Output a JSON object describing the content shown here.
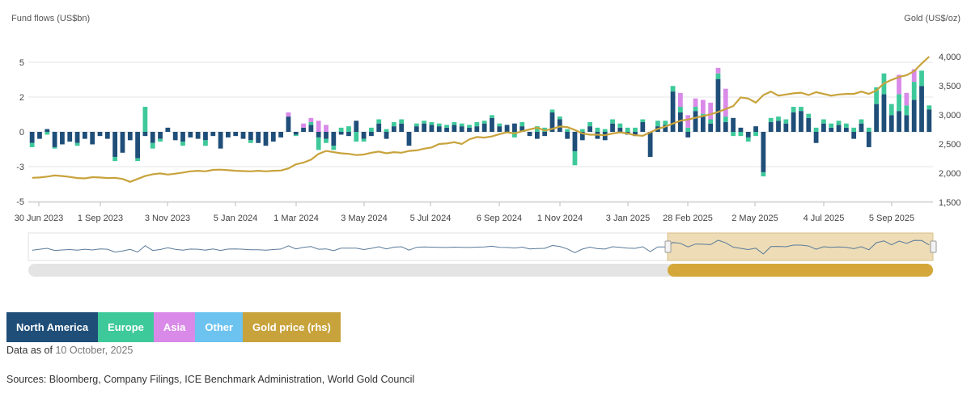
{
  "chart_data": {
    "type": "bar",
    "stacked": true,
    "ylabel_left": "Fund flows (US$bn)",
    "ylabel_right": "Gold (US$/oz)",
    "yticks_left": [
      "5",
      "2",
      "0",
      "-3",
      "-5"
    ],
    "yticks_left_values": [
      5,
      2.5,
      0,
      -2.5,
      -5
    ],
    "ylim_left": [
      -5,
      6.5
    ],
    "yticks_right": [
      "4,000",
      "3,500",
      "3,000",
      "2,500",
      "2,000",
      "1,500"
    ],
    "yticks_right_values": [
      4000,
      3500,
      3000,
      2500,
      2000,
      1500
    ],
    "ylim_right": [
      1500,
      4250
    ],
    "xticks": [
      "30 Jun 2023",
      "1 Sep 2023",
      "3 Nov 2023",
      "5 Jan 2024",
      "1 Mar 2024",
      "3 May 2024",
      "5 Jul 2024",
      "6 Sep 2024",
      "1 Nov 2024",
      "3 Jan 2025",
      "28 Feb 2025",
      "2 May 2025",
      "4 Jul 2025",
      "5 Sep 2025"
    ],
    "week_count": 120,
    "series": [
      {
        "name": "North America",
        "color": "#1f4e79",
        "values": [
          -0.8,
          -0.5,
          0.2,
          -1.1,
          -0.9,
          -0.7,
          -0.8,
          -0.5,
          -0.9,
          -0.3,
          -0.5,
          -1.8,
          -1.5,
          -0.6,
          -1.9,
          -0.3,
          -0.8,
          -0.5,
          0.3,
          -0.6,
          -0.7,
          -0.4,
          -0.5,
          -0.6,
          -0.3,
          -1.2,
          -0.4,
          -0.3,
          -0.5,
          -0.6,
          -0.8,
          -1.0,
          -0.7,
          -0.4,
          1.1,
          -0.2,
          0.3,
          0.5,
          -0.4,
          -0.5,
          -1.0,
          -0.2,
          -0.3,
          0.8,
          -0.5,
          -0.3,
          0.6,
          -0.5,
          0.4,
          0.6,
          -1.0,
          0.4,
          0.6,
          0.5,
          0.4,
          0.3,
          0.5,
          0.4,
          0.3,
          0.4,
          0.6,
          1.0,
          0.4,
          0.5,
          0.6,
          0.4,
          -0.3,
          -0.5,
          -0.3,
          1.4,
          0.9,
          -0.5,
          -1.4,
          -0.6,
          0.4,
          -0.5,
          -0.6,
          0.6,
          0.3,
          -0.2,
          -0.3,
          0.7,
          -1.8,
          0.4,
          0.5,
          2.9,
          1.4,
          -0.4,
          1.5,
          1.1,
          0.6,
          3.8,
          0.7,
          1.0,
          0.3,
          -0.4,
          0.4,
          -2.9,
          0.7,
          0.8,
          0.6,
          1.4,
          1.5,
          1.0,
          -0.8,
          0.6,
          0.3,
          0.5,
          0.3,
          -0.5,
          0.6,
          -1.1,
          2.0,
          2.7,
          1.2,
          1.5,
          1.2,
          2.3,
          3.3,
          1.6
        ],
        "negatives": [
          -0.8,
          -0.5,
          0,
          -1.1,
          -0.9,
          -0.7,
          -0.8,
          -0.5,
          -0.9,
          -0.3,
          -0.5,
          -1.8,
          -1.5,
          -0.6,
          -1.9,
          -0.3,
          -0.8,
          -0.5,
          0,
          -0.6,
          -0.7,
          -0.4,
          -0.5,
          -0.6,
          -0.3,
          -1.2,
          -0.4,
          -0.3,
          -0.5,
          -0.6,
          -0.8,
          -1.0,
          -0.7,
          -0.4,
          0,
          -0.2,
          0,
          0,
          -0.4,
          -0.5,
          -1.0,
          -0.2,
          -0.3,
          0,
          -0.5,
          -0.3,
          0,
          -0.5,
          0,
          0,
          -1.0,
          0,
          0,
          0,
          0,
          0,
          0,
          0,
          0,
          0,
          0,
          0,
          0,
          0,
          0,
          0,
          -0.3,
          -0.5,
          -0.3,
          0,
          0,
          -0.5,
          -1.4,
          -0.6,
          0,
          -0.5,
          -0.6,
          0,
          0,
          -0.2,
          -0.3,
          0,
          -1.8,
          0,
          0,
          0,
          0,
          -0.4,
          0,
          0,
          0,
          0,
          0,
          0,
          0,
          -0.4,
          0,
          -2.9,
          0,
          0,
          0,
          0,
          0,
          0,
          -0.8,
          0,
          0,
          0,
          0,
          -0.5,
          0,
          -1.1,
          0,
          0,
          0,
          0,
          0,
          0,
          0,
          0
        ]
      },
      {
        "name": "Europe",
        "color": "#3ec99a",
        "values": [
          -0.3,
          0,
          -0.2,
          -0.1,
          0,
          0,
          -0.2,
          0,
          0,
          0,
          0,
          -0.3,
          0,
          0,
          -0.2,
          1.8,
          -0.4,
          -0.2,
          0,
          0,
          -0.3,
          0,
          0,
          -0.4,
          0,
          0,
          0,
          0,
          0,
          -0.2,
          0,
          0,
          0,
          0,
          0,
          -0.1,
          0,
          0.2,
          -0.9,
          -0.3,
          -0.3,
          0.3,
          0.4,
          -0.7,
          -0.2,
          0.3,
          0.3,
          0.2,
          0.3,
          0.3,
          0,
          0.2,
          0.2,
          0.2,
          0.2,
          0.2,
          0.2,
          0.2,
          0.2,
          0.3,
          0.2,
          0.2,
          0.2,
          0,
          -0.4,
          0.3,
          0,
          0.4,
          0.3,
          0.2,
          0.2,
          0.2,
          -1.0,
          0.2,
          0.3,
          0.3,
          0.2,
          0.3,
          0.3,
          0.3,
          0.3,
          0.2,
          0,
          0.4,
          0.3,
          0.4,
          0.4,
          0.3,
          0.3,
          0.2,
          0.3,
          0.4,
          0.4,
          -0.3,
          -0.3,
          -0.3,
          -0.3,
          -0.3,
          0.3,
          0.3,
          0.3,
          0.4,
          0.3,
          0.3,
          0.3,
          0.3,
          0.3,
          0.3,
          0.3,
          0.3,
          0.3,
          0.3,
          1.2,
          1.5,
          0.8,
          1.2,
          0.7,
          1.3,
          1.1,
          0.3
        ],
        "negatives": []
      },
      {
        "name": "Asia",
        "color": "#d98ae8",
        "values": [
          0,
          0,
          0,
          0,
          0,
          0,
          0,
          0,
          0,
          0,
          0,
          0,
          0,
          0,
          0,
          0,
          0,
          0,
          0,
          0,
          0,
          0,
          0,
          0,
          0,
          0,
          0,
          0,
          0,
          0,
          0,
          0,
          0,
          0,
          0.3,
          0,
          0.3,
          0.3,
          0.8,
          0.5,
          0,
          0,
          0,
          0,
          0,
          0,
          0,
          0,
          0,
          0,
          0,
          0,
          0,
          0,
          0,
          0,
          0,
          0,
          0,
          0,
          0,
          0,
          0,
          0,
          0,
          0,
          0,
          0,
          0,
          0,
          0,
          0,
          0,
          0,
          0,
          0,
          0,
          0,
          0,
          0,
          0,
          0,
          0,
          0,
          0,
          0,
          1.0,
          0.9,
          0.6,
          1.0,
          1.2,
          0.4,
          2.0,
          0,
          0,
          0,
          0,
          0,
          0,
          0,
          0,
          0,
          0,
          0,
          0,
          0,
          0,
          0,
          0,
          0,
          0,
          0,
          0,
          0,
          0,
          1.4,
          0.9,
          0.9
        ],
        "negatives": []
      }
    ],
    "gold_price": {
      "name": "Gold price (rhs)",
      "color": "#c8a33c",
      "values": [
        1920,
        1925,
        1940,
        1960,
        1950,
        1935,
        1915,
        1910,
        1930,
        1925,
        1915,
        1920,
        1900,
        1850,
        1900,
        1950,
        1980,
        1995,
        1975,
        1990,
        2010,
        2030,
        2040,
        2030,
        2055,
        2060,
        2050,
        2040,
        2035,
        2030,
        2040,
        2030,
        2040,
        2045,
        2080,
        2150,
        2180,
        2230,
        2330,
        2380,
        2360,
        2340,
        2330,
        2310,
        2320,
        2350,
        2370,
        2340,
        2360,
        2350,
        2380,
        2390,
        2420,
        2440,
        2500,
        2510,
        2530,
        2500,
        2580,
        2620,
        2610,
        2630,
        2670,
        2700,
        2680,
        2720,
        2750,
        2780,
        2730,
        2760,
        2800,
        2790,
        2740,
        2680,
        2660,
        2660,
        2650,
        2680,
        2700,
        2680,
        2650,
        2640,
        2700,
        2760,
        2800,
        2850,
        2900,
        2920,
        2950,
        2980,
        3010,
        3050,
        3100,
        3150,
        3300,
        3280,
        3210,
        3340,
        3400,
        3330,
        3350,
        3370,
        3380,
        3340,
        3390,
        3360,
        3330,
        3350,
        3360,
        3360,
        3400,
        3360,
        3420,
        3540,
        3600,
        3650,
        3680,
        3750,
        3880,
        4000
      ]
    },
    "navigator": {
      "selected_start_label": "28 Feb 2025",
      "selected_end_label": "5 Sep 2025"
    }
  },
  "legend": [
    {
      "label": "North America",
      "color": "#1f4e79"
    },
    {
      "label": "Europe",
      "color": "#3ec99a"
    },
    {
      "label": "Asia",
      "color": "#d98ae8"
    },
    {
      "label": "Other",
      "color": "#6cc3f0"
    },
    {
      "label": "Gold price (rhs)",
      "color": "#c8a33c"
    }
  ],
  "footer": {
    "asof_label": "Data as of",
    "asof_date": "10 October, 2025",
    "sources": "Sources: Bloomberg, Company Filings, ICE Benchmark Administration, World Gold Council"
  }
}
